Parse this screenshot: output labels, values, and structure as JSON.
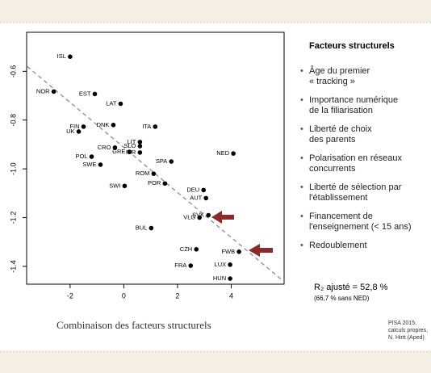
{
  "chart_data": {
    "type": "scatter",
    "labels": [
      "ISL",
      "NOR",
      "EST",
      "LAT",
      "DNK",
      "ITA",
      "FIN",
      "UK",
      "LIT",
      "SLO",
      "CRO",
      "GRE",
      "ISR",
      "NED",
      "POL",
      "SPA",
      "SWE",
      "ROM",
      "POR",
      "SWI",
      "DEU",
      "AUT",
      "SVK",
      "VLG",
      "BUL",
      "CZH",
      "FWB",
      "FRA",
      "LUX",
      "HUN"
    ],
    "x": [
      -2.0,
      -2.61,
      -1.08,
      -0.12,
      -0.39,
      1.17,
      -1.5,
      -1.68,
      0.6,
      0.6,
      -0.33,
      0.21,
      0.6,
      4.08,
      -1.2,
      1.77,
      -0.87,
      1.11,
      1.53,
      0.03,
      2.97,
      3.06,
      3.15,
      2.82,
      1.02,
      2.7,
      4.29,
      2.49,
      3.96,
      3.96
    ],
    "values": [
      -0.54,
      -0.683,
      -0.693,
      -0.733,
      -0.82,
      -0.827,
      -0.827,
      -0.847,
      -0.89,
      -0.907,
      -0.913,
      -0.93,
      -0.933,
      -0.937,
      -0.95,
      -0.97,
      -0.983,
      -1.02,
      -1.06,
      -1.07,
      -1.087,
      -1.12,
      -1.19,
      -1.2,
      -1.243,
      -1.33,
      -1.34,
      -1.397,
      -1.393,
      -1.45
    ],
    "color": "#000000",
    "trend_line": {
      "x": [
        -3.6,
        5.97
      ],
      "values": [
        -0.58,
        -1.463
      ],
      "color": "#999999"
    },
    "xlim": [
      -3.62,
      5.97
    ],
    "ylim": [
      -1.473,
      -0.44
    ],
    "xticks": [
      -2,
      0,
      2,
      4
    ],
    "yticks": [
      -0.6,
      -0.8,
      {
        "value": -1.0,
        "label": "-1.0"
      },
      -1.2,
      -1.4
    ],
    "caption": "Combinaison des facteurs structurels"
  },
  "side": {
    "title": "Facteurs structurels",
    "bullets": [
      [
        "Âge du premier",
        "« tracking »"
      ],
      [
        "Importance numérique",
        "de la filiarisation"
      ],
      [
        "Liberté de choix",
        "des parents"
      ],
      [
        "Polarisation en réseaux",
        "concurrents"
      ],
      [
        "Liberté de sélection par",
        "l'établissement"
      ],
      [
        "Financement de",
        "l'enseignement (< 15 ans)"
      ],
      [
        "Redoublement"
      ]
    ],
    "r2": "R₂ ajusté = 52,8 %",
    "r2_note": "(66,7 % sans NED)",
    "source": [
      "PISA 2015,",
      "calculs propres,",
      "N. Hirtt (Aped)"
    ]
  }
}
